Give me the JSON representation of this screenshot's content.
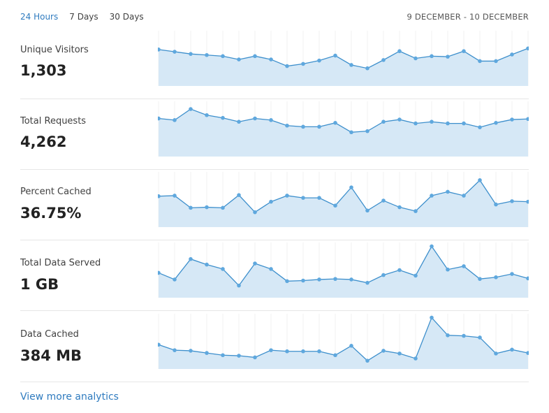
{
  "tabs": [
    {
      "label": "24 Hours",
      "active": true
    },
    {
      "label": "7 Days",
      "active": false
    },
    {
      "label": "30 Days",
      "active": false
    }
  ],
  "date_range": "9 DECEMBER - 10 DECEMBER",
  "colors": {
    "accent": "#2f7bbf",
    "fill": "#d6e8f6",
    "line": "#3d8fcc",
    "point": "#5fa8de"
  },
  "metrics": [
    {
      "label": "Unique Visitors",
      "value": "1,303",
      "series": [
        66,
        62,
        58,
        56,
        54,
        48,
        54,
        48,
        36,
        40,
        46,
        55,
        38,
        32,
        47,
        63,
        50,
        54,
        53,
        63,
        45,
        45,
        57,
        68
      ]
    },
    {
      "label": "Total Requests",
      "value": "4,262",
      "series": [
        69,
        66,
        86,
        75,
        70,
        63,
        69,
        66,
        56,
        54,
        54,
        61,
        44,
        46,
        63,
        67,
        60,
        63,
        60,
        60,
        53,
        61,
        67,
        68
      ]
    },
    {
      "label": "Percent Cached",
      "value": "36.75%",
      "series": [
        56,
        57,
        35,
        36,
        35,
        58,
        27,
        46,
        57,
        53,
        53,
        39,
        72,
        30,
        48,
        36,
        29,
        57,
        64,
        57,
        85,
        41,
        47,
        46
      ]
    },
    {
      "label": "Total Data Served",
      "value": "1 GB",
      "series": [
        45,
        33,
        70,
        60,
        52,
        22,
        62,
        52,
        30,
        31,
        33,
        34,
        33,
        27,
        41,
        50,
        40,
        93,
        51,
        57,
        34,
        37,
        43,
        35
      ]
    },
    {
      "label": "Data Cached",
      "value": "384 MB",
      "series": [
        44,
        34,
        33,
        29,
        25,
        24,
        21,
        34,
        32,
        32,
        32,
        25,
        42,
        15,
        33,
        28,
        19,
        93,
        61,
        60,
        57,
        28,
        35,
        29
      ]
    }
  ],
  "more_link": "View more analytics"
}
